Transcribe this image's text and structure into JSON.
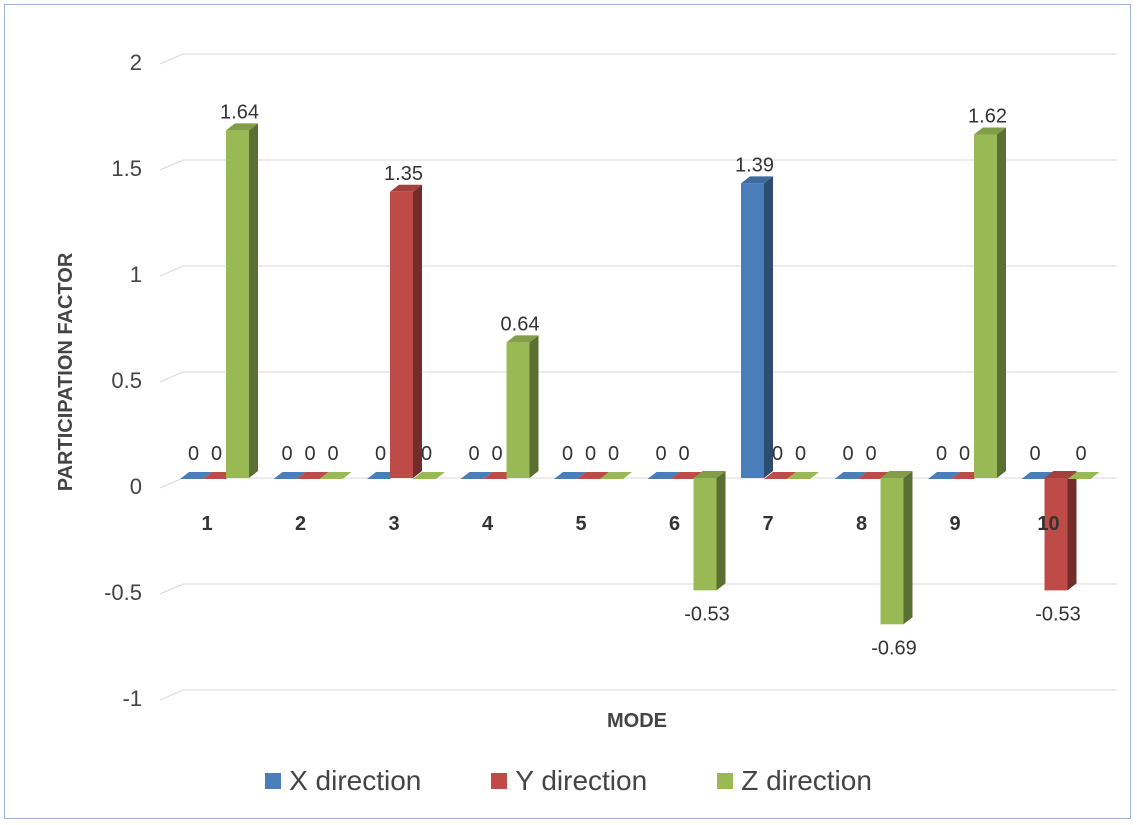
{
  "chart_data": {
    "type": "bar",
    "title": "",
    "xlabel": "MODE",
    "ylabel": "PARTICIPATION FACTOR",
    "categories": [
      "1",
      "2",
      "3",
      "4",
      "5",
      "6",
      "7",
      "8",
      "9",
      "10"
    ],
    "yticks": [
      "2",
      "1.5",
      "1",
      "0.5",
      "0",
      "-0.5",
      "-1"
    ],
    "ylim": [
      -1,
      2
    ],
    "grid": true,
    "legend_position": "bottom",
    "series": [
      {
        "name": "X direction",
        "color": "#4a7ebb",
        "values": [
          0,
          0,
          0,
          0,
          0,
          0,
          1.39,
          0,
          0,
          0
        ],
        "labels": [
          "0",
          "0",
          "0",
          "0",
          "0",
          "0",
          "1.39",
          "0",
          "0",
          "0"
        ]
      },
      {
        "name": "Y direction",
        "color": "#be4b48",
        "values": [
          0,
          0,
          1.35,
          0,
          0,
          0,
          0,
          0,
          0,
          -0.53
        ],
        "labels": [
          "0",
          "0",
          "",
          "0",
          "0",
          "0",
          "0",
          "0",
          "0",
          ""
        ]
      },
      {
        "name": "Z direction",
        "color": "#98b954",
        "values": [
          1.64,
          0,
          0,
          0.64,
          0,
          -0.53,
          0,
          -0.69,
          1.62,
          0
        ],
        "labels": [
          "1.64",
          "0",
          "0",
          "0.64",
          "0",
          "-0.53",
          "0",
          "-0.69",
          "1.62",
          "0"
        ]
      }
    ],
    "extra_labels": [
      {
        "text": "1.35",
        "cat": 2,
        "series": 1
      },
      {
        "text": "-0.53",
        "cat": 9,
        "series": 1
      }
    ]
  }
}
